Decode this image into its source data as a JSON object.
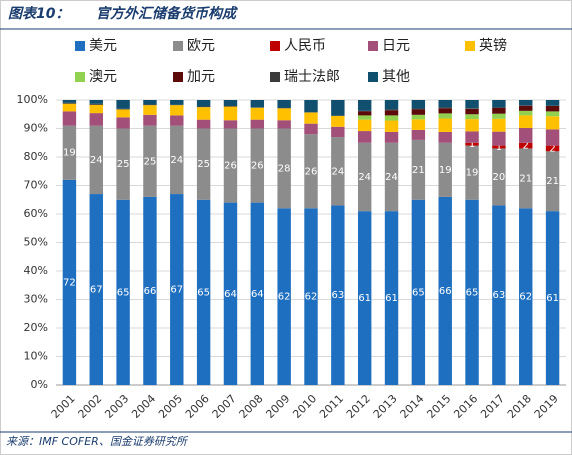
{
  "chart_data": {
    "type": "stacked_bar",
    "figure_label": "图表10：",
    "title": "官方外汇储备货币构成",
    "source": "来源：IMF COFER、国金证券研究所",
    "categories": [
      "2001",
      "2002",
      "2003",
      "2004",
      "2005",
      "2006",
      "2007",
      "2008",
      "2009",
      "2010",
      "2011",
      "2012",
      "2013",
      "2014",
      "2015",
      "2016",
      "2017",
      "2018",
      "2019"
    ],
    "series": [
      {
        "name": "美元",
        "color": "#1f6fc0",
        "show_labels": true,
        "values": [
          72,
          67,
          65,
          66,
          67,
          65,
          64,
          64,
          62,
          62,
          63,
          61,
          61,
          65,
          66,
          65,
          63,
          62,
          61
        ]
      },
      {
        "name": "欧元",
        "color": "#8c8c8c",
        "show_labels": true,
        "values": [
          19,
          24,
          25,
          25,
          24,
          25,
          26,
          26,
          28,
          26,
          24,
          24,
          24,
          21,
          19,
          19,
          20,
          21,
          21
        ]
      },
      {
        "name": "人民币",
        "color": "#c00000",
        "show_labels": true,
        "values": [
          null,
          null,
          null,
          null,
          null,
          null,
          null,
          null,
          null,
          null,
          null,
          null,
          null,
          null,
          null,
          1,
          1,
          2,
          2
        ]
      },
      {
        "name": "日元",
        "color": "#a24f7a",
        "values": [
          5,
          4.4,
          3.9,
          3.8,
          3.6,
          3.1,
          2.9,
          3.1,
          2.9,
          3.7,
          3.6,
          4.1,
          3.8,
          3.5,
          3.8,
          4.0,
          4.9,
          5.2,
          5.7
        ]
      },
      {
        "name": "英镑",
        "color": "#ffc000",
        "values": [
          2.7,
          2.9,
          2.8,
          3.4,
          3.6,
          4.4,
          4.8,
          4.2,
          4.2,
          3.9,
          3.8,
          4.0,
          4.0,
          3.7,
          4.7,
          4.3,
          4.5,
          4.4,
          4.6
        ]
      },
      {
        "name": "澳元",
        "color": "#92d050",
        "values": [
          null,
          null,
          null,
          null,
          null,
          null,
          null,
          null,
          null,
          null,
          null,
          1.5,
          1.8,
          1.6,
          1.8,
          1.7,
          1.8,
          1.6,
          1.7
        ]
      },
      {
        "name": "加元",
        "color": "#5c0a0a",
        "values": [
          null,
          null,
          null,
          null,
          null,
          null,
          null,
          null,
          null,
          null,
          null,
          1.4,
          1.8,
          1.9,
          1.8,
          1.9,
          2.0,
          1.8,
          1.9
        ]
      },
      {
        "name": "瑞士法郎",
        "color": "#3b3b3b",
        "values": [
          0.3,
          0.4,
          0.2,
          0.2,
          0.1,
          0.2,
          0.2,
          0.1,
          0.1,
          0.1,
          0.1,
          0.2,
          0.3,
          0.3,
          0.3,
          0.2,
          0.2,
          0.1,
          0.1
        ]
      },
      {
        "name": "其他",
        "color": "#114f6e",
        "values": [
          1,
          1.3,
          3.1,
          1.6,
          1.7,
          2.3,
          2.1,
          2.6,
          2.8,
          4.3,
          5.5,
          3.8,
          3.3,
          3,
          2.6,
          2.9,
          2.6,
          1.9,
          2
        ]
      }
    ],
    "ylim": [
      0,
      100
    ],
    "yticks": [
      {
        "value": 0,
        "label": "0%"
      },
      {
        "value": 10,
        "label": "10%"
      },
      {
        "value": 20,
        "label": "20%"
      },
      {
        "value": 30,
        "label": "30%"
      },
      {
        "value": 40,
        "label": "40%"
      },
      {
        "value": 50,
        "label": "50%"
      },
      {
        "value": 60,
        "label": "60%"
      },
      {
        "value": 70,
        "label": "70%"
      },
      {
        "value": 80,
        "label": "80%"
      },
      {
        "value": 90,
        "label": "90%"
      },
      {
        "value": 100,
        "label": "100%"
      }
    ],
    "grid": true
  }
}
